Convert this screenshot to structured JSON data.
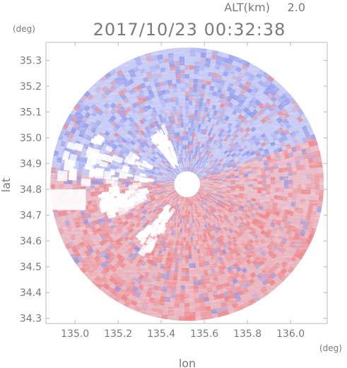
{
  "header": {
    "altitude_label": "ALT(km)",
    "altitude_value": "2.0",
    "timestamp": "2017/10/23 00:32:38"
  },
  "colors": {
    "frame": "#b8b8b8",
    "text": "#7a7a7a",
    "positive": "#f07070",
    "negative": "#7a86e8",
    "neutral": "#ffffff"
  },
  "chart_data": {
    "type": "heatmap",
    "description_of_field": "Doppler-radar style PPI scan, red/blue diverging colours on a circular coverage disc",
    "xlabel": "lon",
    "ylabel": "lat",
    "x_unit": "(deg)",
    "y_unit": "(deg)",
    "xlim": [
      134.865,
      136.17
    ],
    "ylim": [
      34.28,
      35.37
    ],
    "x_ticks": [
      "135.0",
      "135.2",
      "135.4",
      "135.6",
      "135.8",
      "136.0"
    ],
    "y_ticks": [
      "34.3",
      "34.4",
      "34.5",
      "34.6",
      "34.7",
      "34.8",
      "34.9",
      "35.0",
      "35.1",
      "35.2",
      "35.3"
    ],
    "radar_center": {
      "lon": 135.52,
      "lat": 34.82
    },
    "coverage_radius_lat": 0.53,
    "inner_void_radius_lat": 0.05
  }
}
